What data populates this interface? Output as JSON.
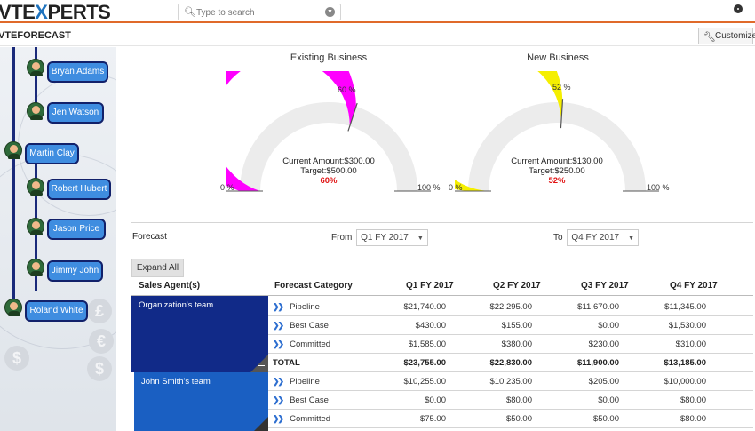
{
  "header": {
    "logo_prefix": "VTE",
    "logo_x": "X",
    "logo_suffix": "PERTS",
    "search_placeholder": "Type to search"
  },
  "subheader": {
    "title": "VTEFORECAST",
    "customize_label": "Customize"
  },
  "tree": {
    "nodes": [
      {
        "name": "Bryan Adams"
      },
      {
        "name": "Jen Watson"
      },
      {
        "name": "Martin Clay"
      },
      {
        "name": "Robert Hubert"
      },
      {
        "name": "Jason Price"
      },
      {
        "name": "Jimmy John"
      },
      {
        "name": "Roland White"
      }
    ]
  },
  "gauges": [
    {
      "title": "Existing Business",
      "percent_label": "60 %",
      "current_label": "Current Amount:$300.00",
      "target_label": "Target:$500.00",
      "pct": "60%",
      "fraction": 0.6,
      "min_label": "0 %",
      "max_label": "100 %",
      "color": "#ff00ff"
    },
    {
      "title": "New Business",
      "percent_label": "52 %",
      "current_label": "Current Amount:$130.00",
      "target_label": "Target:$250.00",
      "pct": "52%",
      "fraction": 0.52,
      "min_label": "0 %",
      "max_label": "100 %",
      "color": "#f5ef00"
    }
  ],
  "forecast": {
    "label": "Forecast",
    "from_label": "From",
    "from_value": "Q1 FY 2017",
    "to_label": "To",
    "to_value": "Q4 FY 2017",
    "expand_label": "Expand All"
  },
  "table": {
    "headers": [
      "Sales Agent(s)",
      "Forecast Category",
      "Q1 FY 2017",
      "Q2 FY 2017",
      "Q3 FY 2017",
      "Q4 FY 2017"
    ],
    "teams": [
      "Organization's team",
      "John Smith's team"
    ],
    "rows": [
      {
        "cat": "Pipeline",
        "q1": "$21,740.00",
        "q2": "$22,295.00",
        "q3": "$11,670.00",
        "q4": "$11,345.00"
      },
      {
        "cat": "Best Case",
        "q1": "$430.00",
        "q2": "$155.00",
        "q3": "$0.00",
        "q4": "$1,530.00"
      },
      {
        "cat": "Committed",
        "q1": "$1,585.00",
        "q2": "$380.00",
        "q3": "$230.00",
        "q4": "$310.00"
      },
      {
        "cat": "TOTAL",
        "q1": "$23,755.00",
        "q2": "$22,830.00",
        "q3": "$11,900.00",
        "q4": "$13,185.00"
      },
      {
        "cat": "Pipeline",
        "q1": "$10,255.00",
        "q2": "$10,235.00",
        "q3": "$205.00",
        "q4": "$10,000.00"
      },
      {
        "cat": "Best Case",
        "q1": "$0.00",
        "q2": "$80.00",
        "q3": "$0.00",
        "q4": "$80.00"
      },
      {
        "cat": "Committed",
        "q1": "$75.00",
        "q2": "$50.00",
        "q3": "$50.00",
        "q4": "$80.00"
      }
    ]
  },
  "icons": {
    "search": "search-icon",
    "dropdown": "chevron-down-icon",
    "settings": "gear-icon",
    "customize": "wrench-icon",
    "row": "double-chevron-right-icon"
  }
}
